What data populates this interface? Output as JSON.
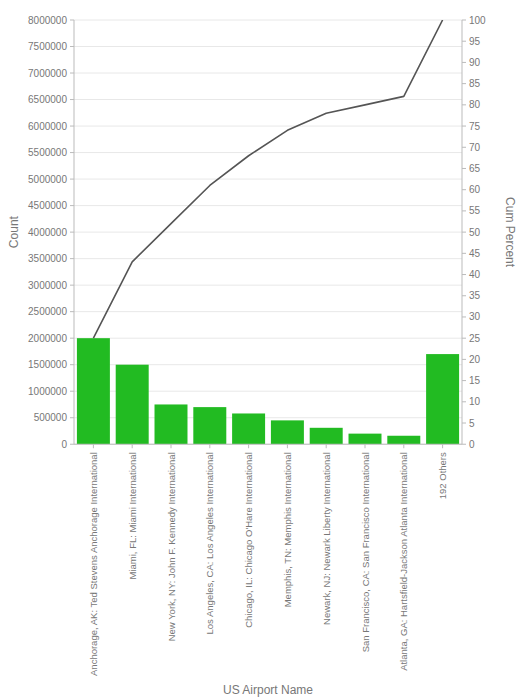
{
  "chart_data": {
    "type": "bar",
    "xlabel": "US Airport Name",
    "ylabel": "Count",
    "y2label": "Cum Percent",
    "categories": [
      "Anchorage, AK: Ted Stevens Anchorage International",
      "Miami, FL: Miami International",
      "New York, NY: John F. Kennedy International",
      "Los Angeles, CA: Los Angeles International",
      "Chicago, IL: Chicago O'Hare International",
      "Memphis, TN: Memphis International",
      "Newark, NJ: Newark Liberty International",
      "San Francisco, CA: San Francisco International",
      "Atlanta, GA: Hartsfield-Jackson Atlanta International",
      "192 Others"
    ],
    "series": [
      {
        "type": "bar",
        "color": "#22bb22",
        "values": [
          2000000,
          1500000,
          750000,
          700000,
          580000,
          450000,
          310000,
          200000,
          160000,
          1700000
        ]
      },
      {
        "type": "line",
        "axis": "y2",
        "color": "#555555",
        "values": [
          25,
          43,
          52,
          61,
          68,
          74,
          78,
          80,
          82,
          100
        ]
      }
    ],
    "ylim": [
      0,
      8000000
    ],
    "yticks": [
      0,
      500000,
      1000000,
      1500000,
      2000000,
      2500000,
      3000000,
      3500000,
      4000000,
      4500000,
      5000000,
      5500000,
      6000000,
      6500000,
      7000000,
      7500000,
      8000000
    ],
    "y2lim": [
      0,
      100
    ],
    "y2ticks": [
      0,
      5,
      10,
      15,
      20,
      25,
      30,
      35,
      40,
      45,
      50,
      55,
      60,
      65,
      70,
      75,
      80,
      85,
      90,
      95,
      100
    ],
    "grid": true
  }
}
